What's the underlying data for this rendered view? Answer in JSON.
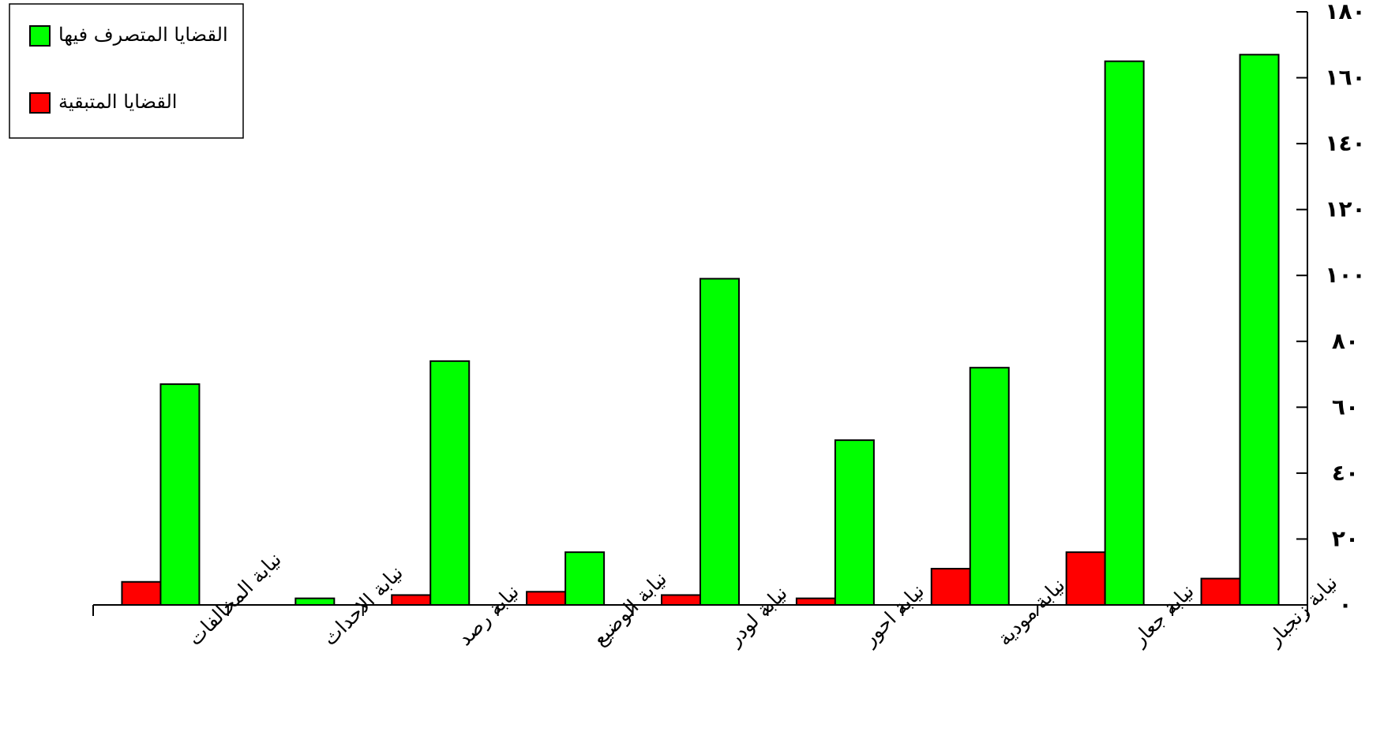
{
  "chart_data": {
    "type": "bar",
    "categories": [
      "نيابة المخالفات",
      "نيابة الاحداث",
      "نيابة رصد",
      "نيابة الوضيع",
      "نيابة لودر",
      "نيابة احور",
      "نيابة مودية",
      "نيابة جعار",
      "نيابة زنجبار"
    ],
    "series": [
      {
        "name": "القضايا المتبقية",
        "color": "#ff0000",
        "values": [
          7,
          0,
          3,
          4,
          3,
          2,
          11,
          16,
          8
        ]
      },
      {
        "name": "القضايا المتصرف فيها",
        "color": "#00ff00",
        "values": [
          67,
          2,
          74,
          16,
          99,
          50,
          72,
          165,
          167
        ]
      }
    ],
    "y_axis": {
      "position": "right",
      "min": 0,
      "max": 180,
      "step": 20,
      "tick_labels": [
        "٠",
        "٢٠",
        "٤٠",
        "٦٠",
        "٨٠",
        "١٠٠",
        "١٢٠",
        "١٤٠",
        "١٦٠",
        "١٨٠"
      ]
    },
    "legend": {
      "placement": "top-left",
      "order": [
        "القضايا المتصرف فيها",
        "القضايا المتبقية"
      ]
    },
    "grid": false,
    "title": "",
    "xlabel": "",
    "ylabel": ""
  }
}
